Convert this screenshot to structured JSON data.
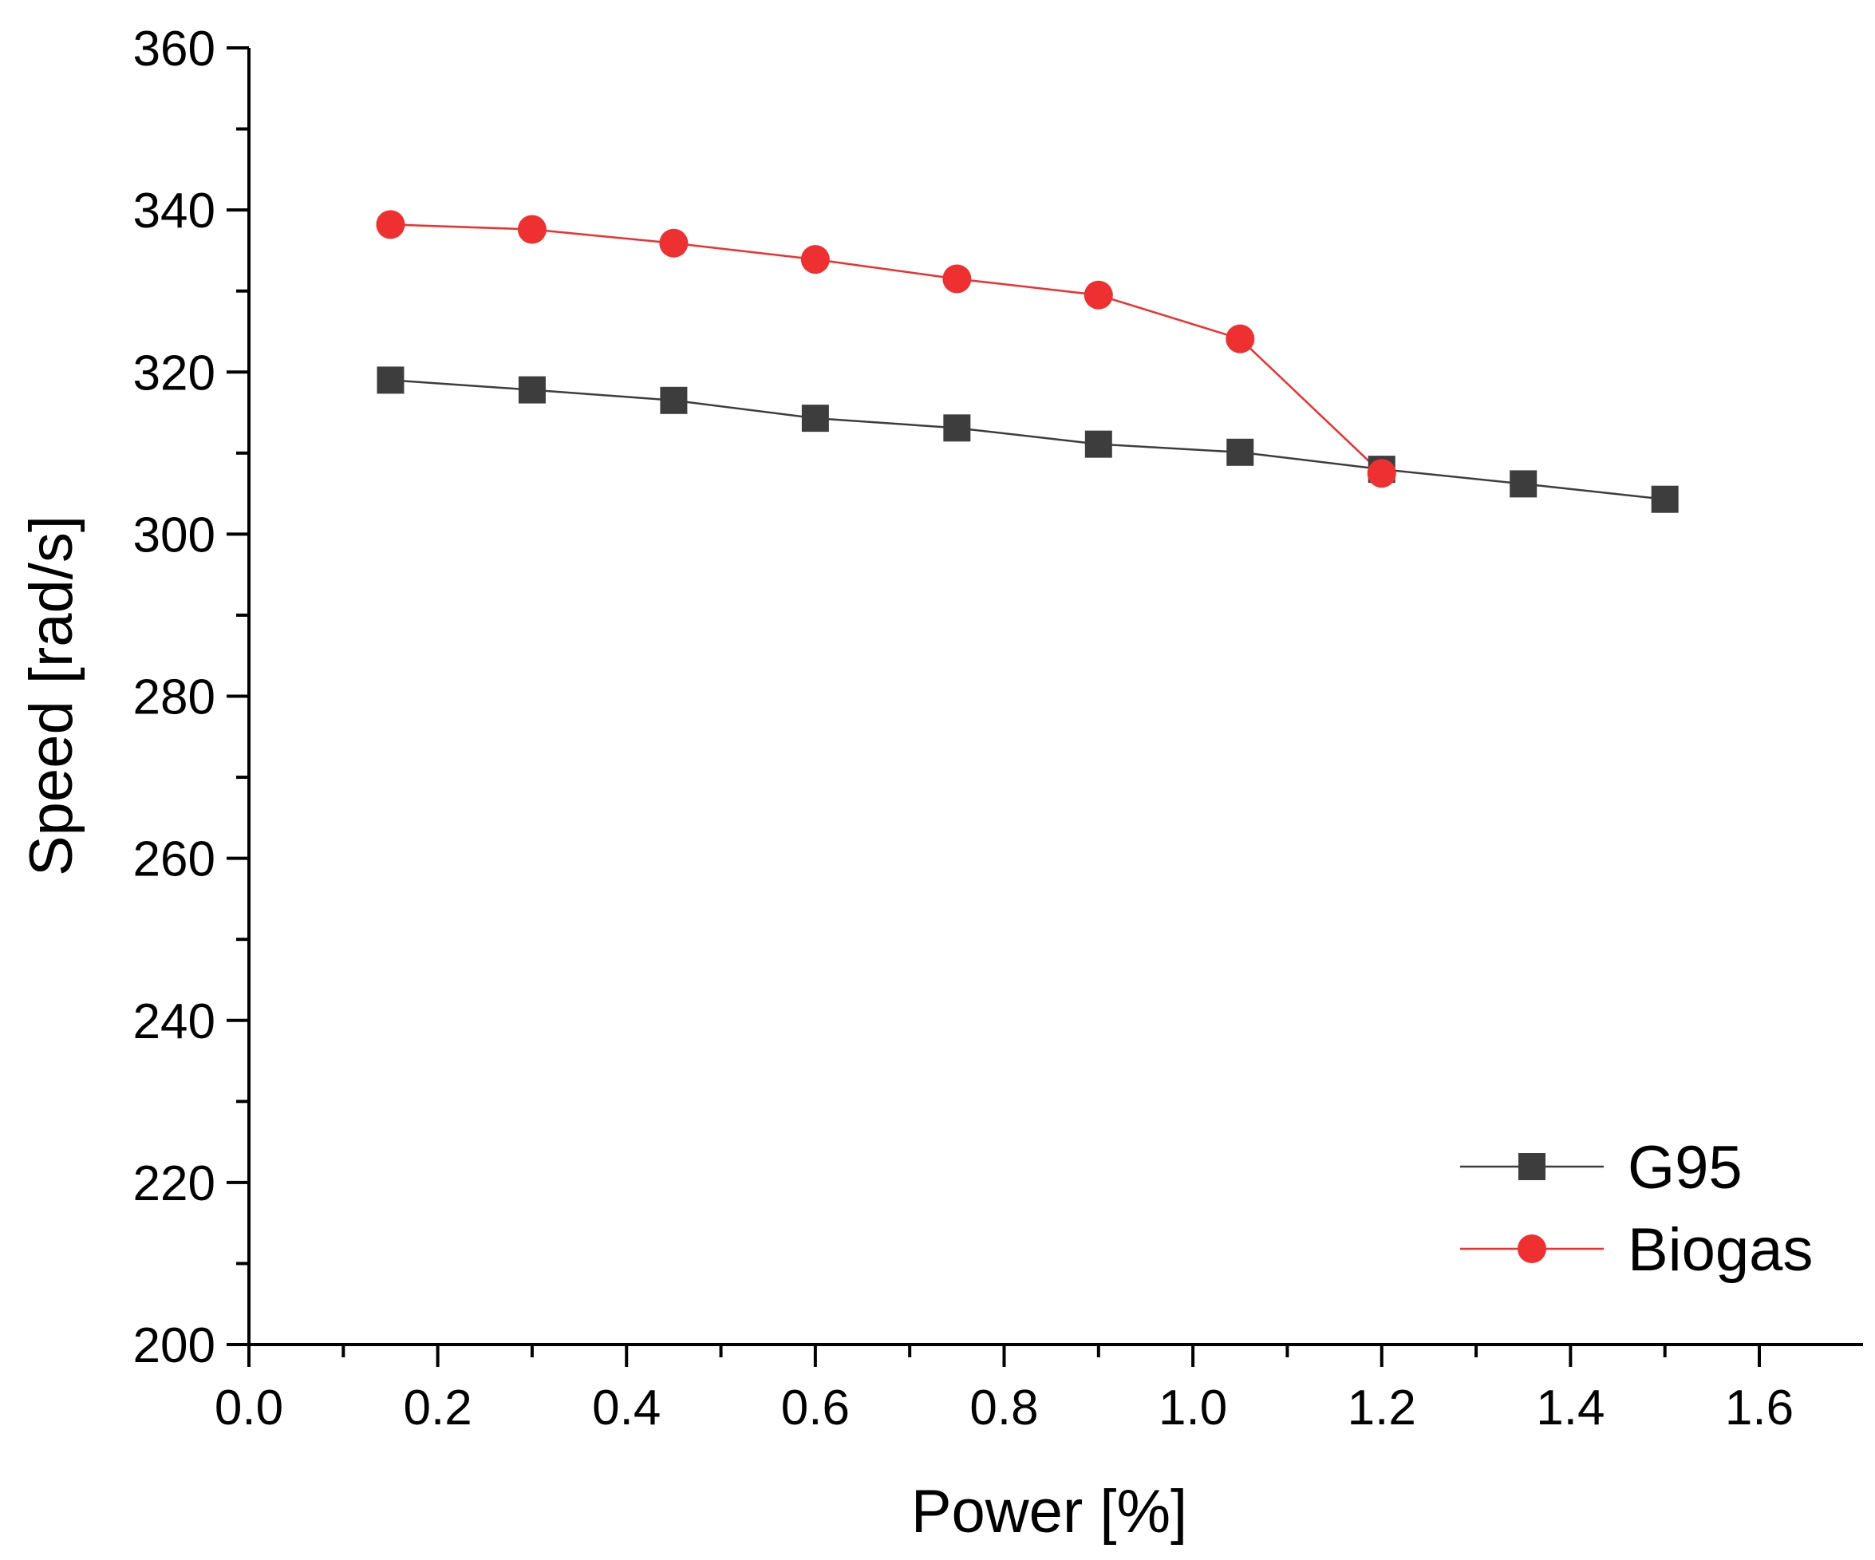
{
  "chart_data": {
    "type": "line",
    "title": "",
    "xlabel": "Power [%]",
    "ylabel": "Speed [rad/s]",
    "xlim": [
      0.0,
      1.7
    ],
    "ylim": [
      200,
      360
    ],
    "xticks": [
      0.0,
      0.2,
      0.4,
      0.6,
      0.8,
      1.0,
      1.2,
      1.4,
      1.6
    ],
    "xtick_labels": [
      "0.0",
      "0.2",
      "0.4",
      "0.6",
      "0.8",
      "1.0",
      "1.2",
      "1.4",
      "1.6"
    ],
    "yticks": [
      200,
      220,
      240,
      260,
      280,
      300,
      320,
      340,
      360
    ],
    "ytick_labels": [
      "200",
      "220",
      "240",
      "260",
      "280",
      "300",
      "320",
      "340",
      "360"
    ],
    "grid": false,
    "legend_position": "bottom-right",
    "series": [
      {
        "name": "G95",
        "color": "#3d3d3d",
        "marker": "square",
        "x": [
          0.15,
          0.3,
          0.45,
          0.6,
          0.75,
          0.9,
          1.05,
          1.2,
          1.35,
          1.5
        ],
        "y": [
          319,
          317.8,
          316.5,
          314.3,
          313.1,
          311.1,
          310.1,
          308,
          306.2,
          304.3
        ]
      },
      {
        "name": "Biogas",
        "color": "#ee3030",
        "marker": "circle",
        "x": [
          0.15,
          0.3,
          0.45,
          0.6,
          0.75,
          0.9,
          1.05,
          1.2
        ],
        "y": [
          338.2,
          337.6,
          335.9,
          333.9,
          331.5,
          329.5,
          324.1,
          307.5
        ]
      }
    ]
  }
}
